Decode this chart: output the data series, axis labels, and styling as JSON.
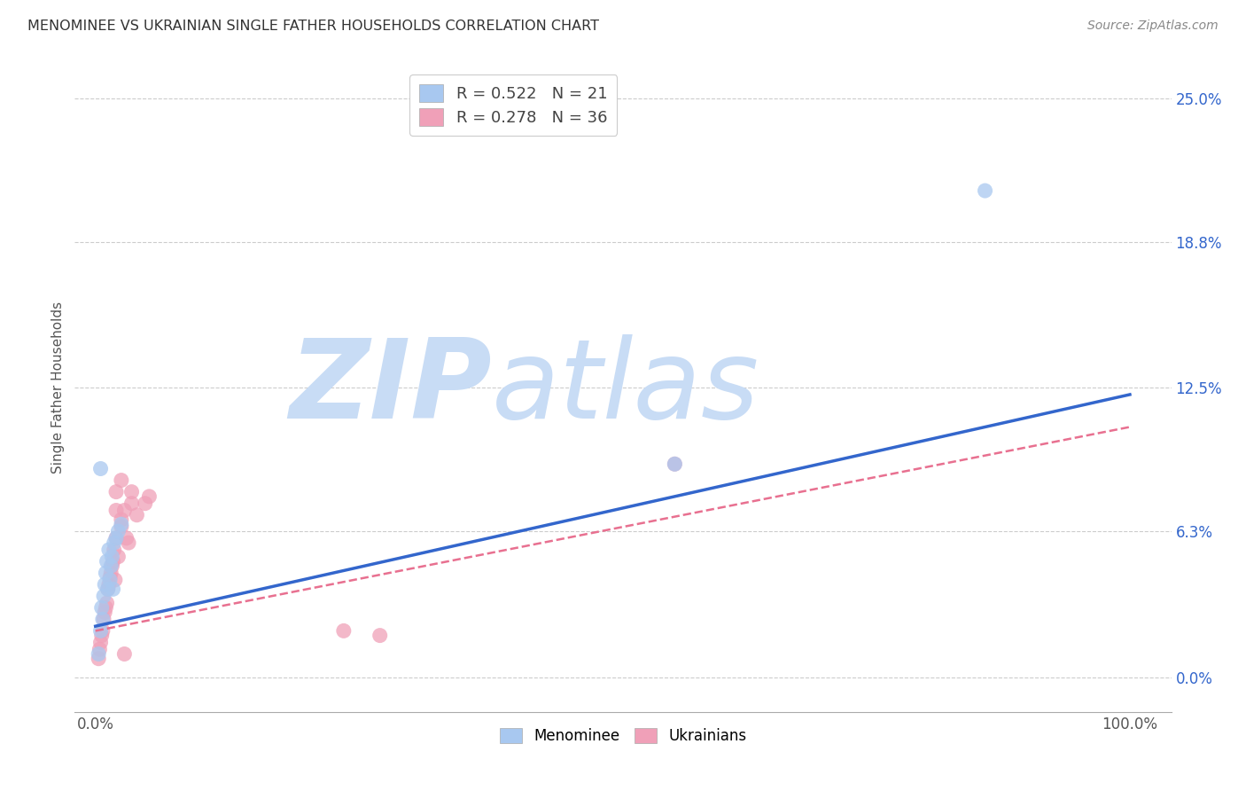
{
  "title": "MENOMINEE VS UKRAINIAN SINGLE FATHER HOUSEHOLDS CORRELATION CHART",
  "source": "Source: ZipAtlas.com",
  "ylabel": "Single Father Households",
  "ytick_labels": [
    "0.0%",
    "6.3%",
    "12.5%",
    "18.8%",
    "25.0%"
  ],
  "ytick_values": [
    0.0,
    0.063,
    0.125,
    0.188,
    0.25
  ],
  "xlim": [
    0.0,
    1.0
  ],
  "ylim": [
    -0.015,
    0.265
  ],
  "legend_label_blue": "R = 0.522   N = 21",
  "legend_label_pink": "R = 0.278   N = 36",
  "menominee_color": "#a8c8f0",
  "ukrainian_color": "#f0a0b8",
  "menominee_line_color": "#3366cc",
  "ukrainian_line_color": "#e87090",
  "watermark_zip_color": "#c8d8f0",
  "watermark_atlas_color": "#c8d8f0",
  "background_color": "#ffffff",
  "grid_color": "#cccccc",
  "menominee_x": [
    0.003,
    0.005,
    0.006,
    0.007,
    0.008,
    0.009,
    0.01,
    0.011,
    0.012,
    0.013,
    0.014,
    0.015,
    0.016,
    0.017,
    0.018,
    0.02,
    0.022,
    0.025,
    0.005,
    0.56,
    0.86
  ],
  "menominee_y": [
    0.01,
    0.02,
    0.03,
    0.025,
    0.035,
    0.04,
    0.045,
    0.05,
    0.038,
    0.055,
    0.042,
    0.048,
    0.052,
    0.038,
    0.058,
    0.06,
    0.063,
    0.066,
    0.09,
    0.092,
    0.21
  ],
  "ukrainian_x": [
    0.003,
    0.004,
    0.005,
    0.006,
    0.007,
    0.008,
    0.009,
    0.01,
    0.011,
    0.012,
    0.013,
    0.014,
    0.015,
    0.016,
    0.017,
    0.018,
    0.019,
    0.02,
    0.022,
    0.025,
    0.028,
    0.03,
    0.032,
    0.035,
    0.04,
    0.048,
    0.052,
    0.02,
    0.025,
    0.035,
    0.24,
    0.275,
    0.02,
    0.025,
    0.028,
    0.56
  ],
  "ukrainian_y": [
    0.008,
    0.012,
    0.015,
    0.018,
    0.02,
    0.025,
    0.028,
    0.03,
    0.032,
    0.038,
    0.04,
    0.043,
    0.045,
    0.048,
    0.05,
    0.055,
    0.042,
    0.06,
    0.052,
    0.065,
    0.072,
    0.06,
    0.058,
    0.075,
    0.07,
    0.075,
    0.078,
    0.08,
    0.085,
    0.08,
    0.02,
    0.018,
    0.072,
    0.068,
    0.01,
    0.092
  ],
  "men_line_x0": 0.0,
  "men_line_x1": 1.0,
  "men_line_y0": 0.022,
  "men_line_y1": 0.122,
  "ukr_line_x0": 0.0,
  "ukr_line_x1": 1.0,
  "ukr_line_y0": 0.02,
  "ukr_line_y1": 0.108
}
